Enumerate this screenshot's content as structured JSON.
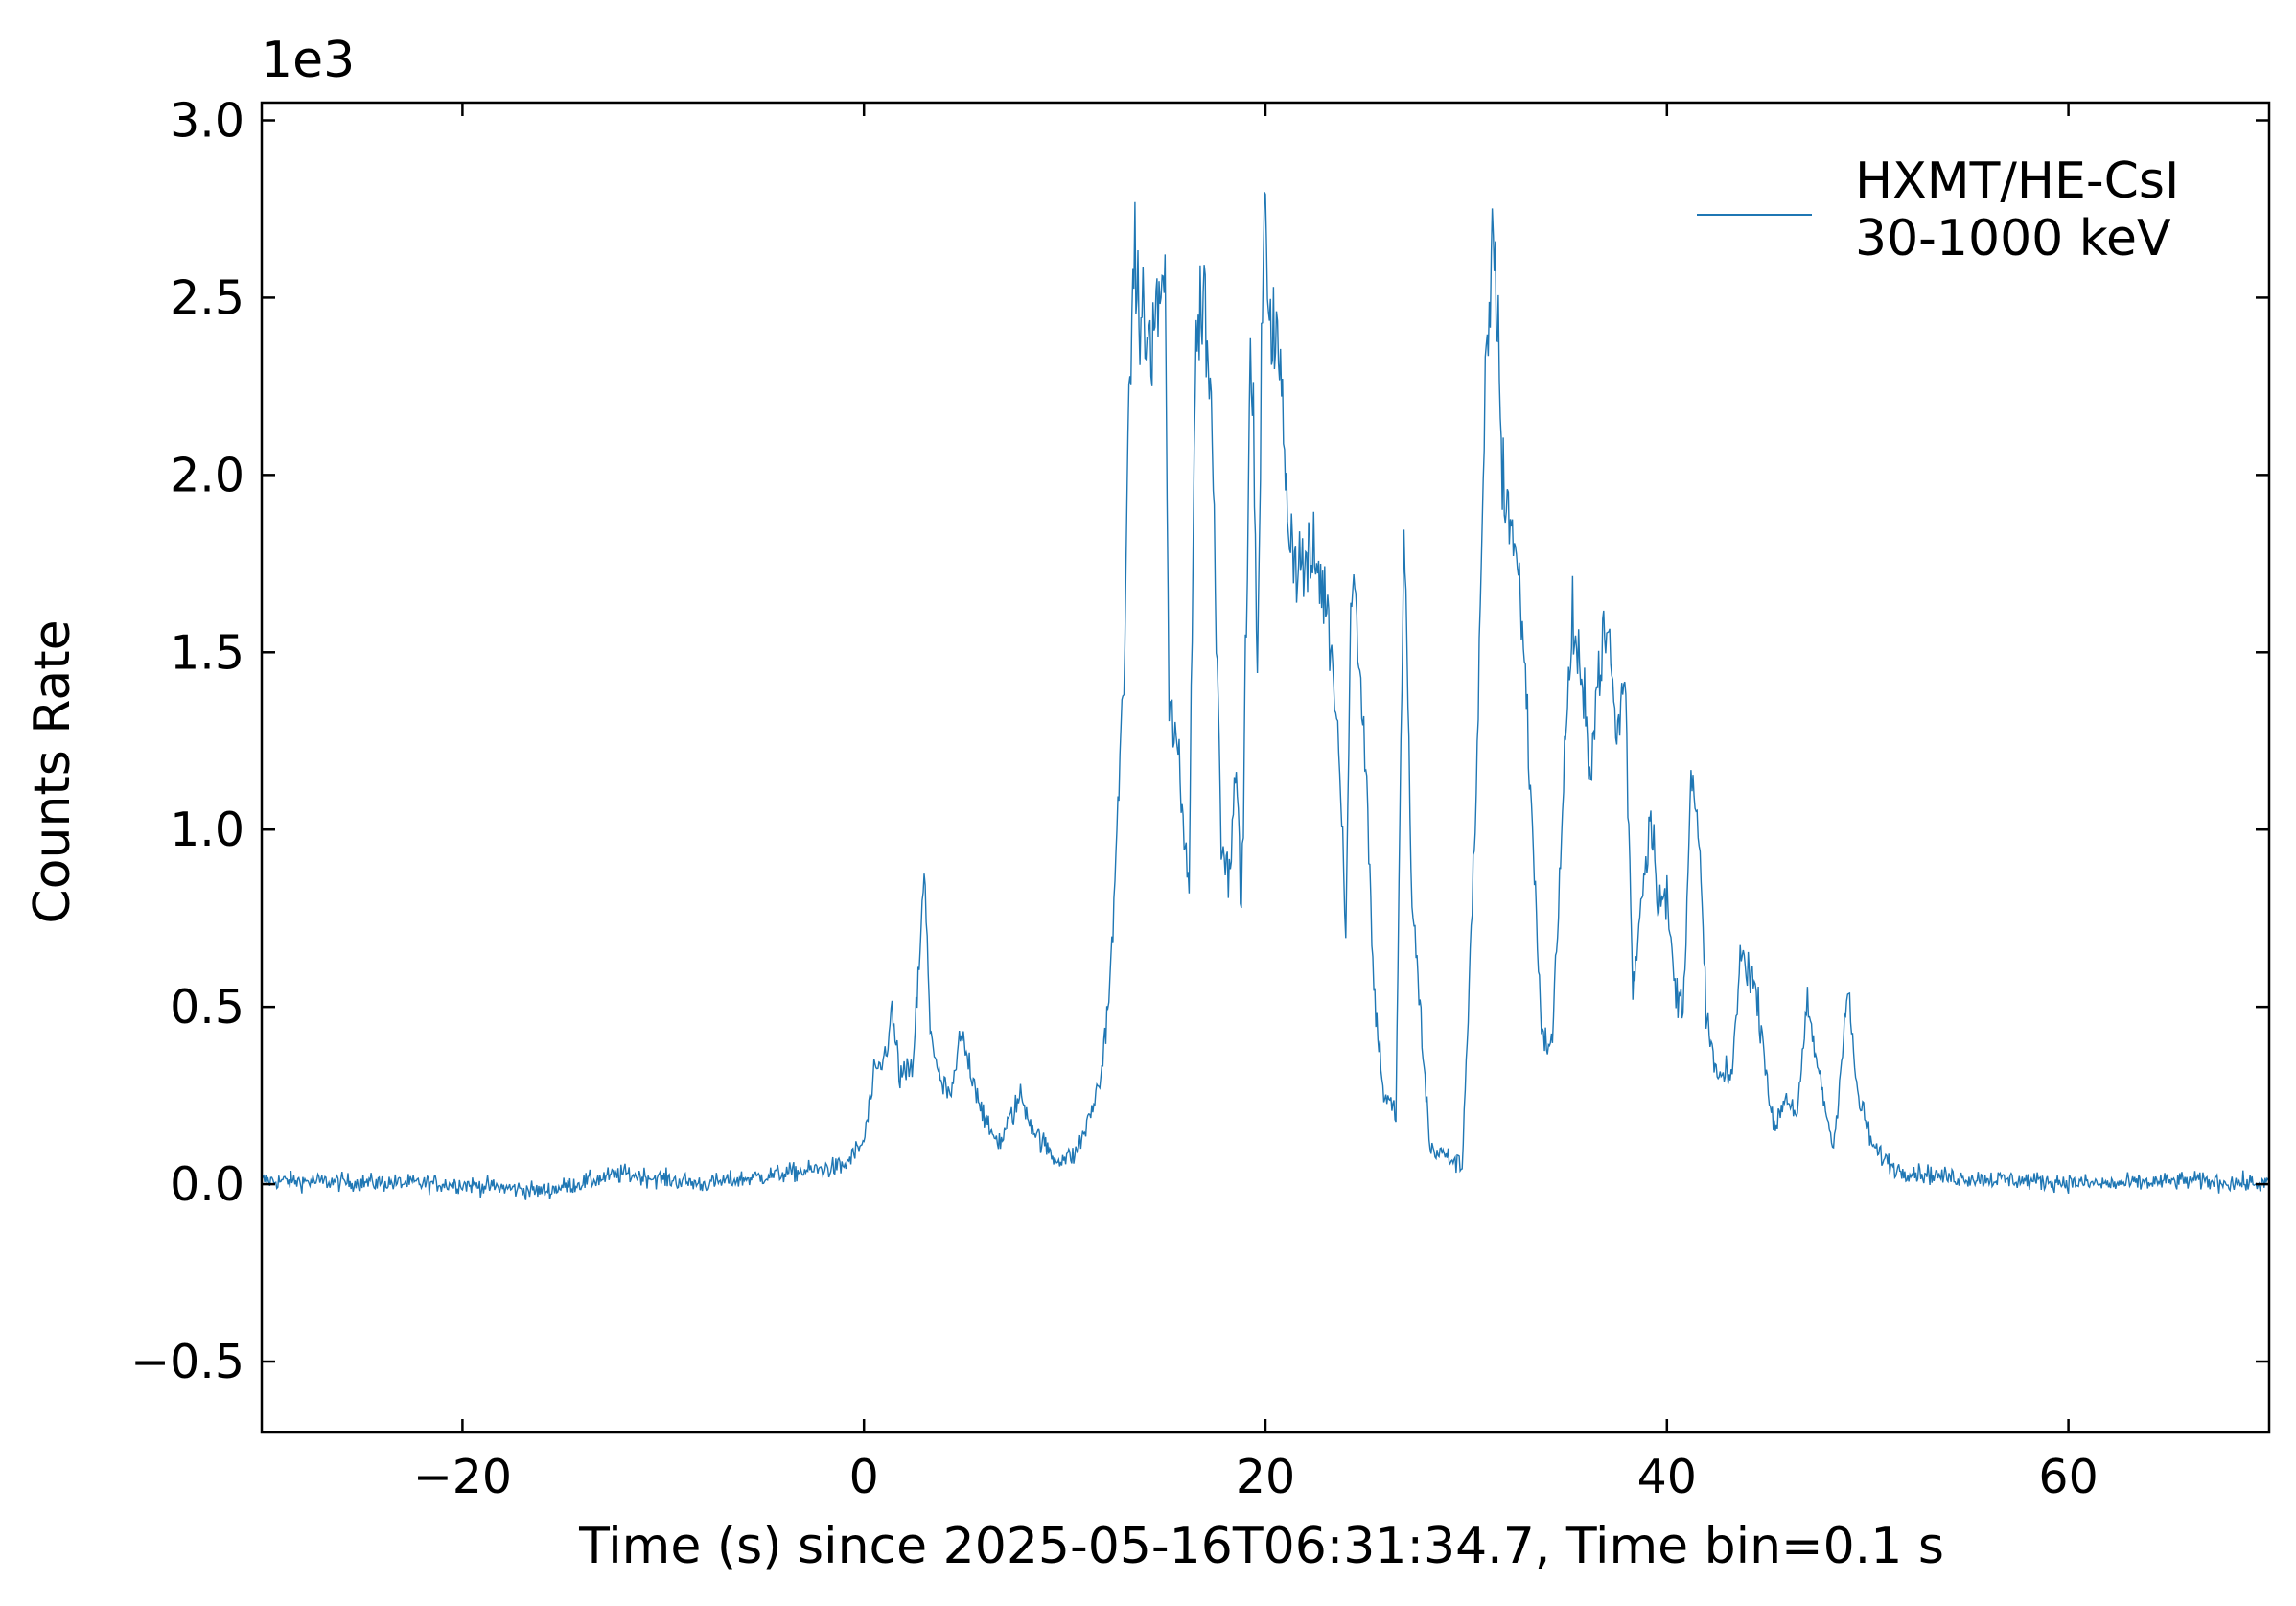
{
  "chart_data": {
    "type": "line",
    "title": "",
    "xlabel": "Time (s) since 2025-05-16T06:31:34.7, Time bin=0.1 s",
    "ylabel": "Counts Rate",
    "y_offset_label": "1e3",
    "xlim": [
      -30,
      70
    ],
    "ylim": [
      -0.7,
      3.05
    ],
    "y_scale_factor": 1000,
    "x_ticks": [
      -20,
      0,
      20,
      40,
      60
    ],
    "x_tick_labels": [
      "−20",
      "0",
      "20",
      "40",
      "60"
    ],
    "y_ticks": [
      -0.5,
      0.0,
      0.5,
      1.0,
      1.5,
      2.0,
      2.5,
      3.0
    ],
    "y_tick_labels": [
      "−0.5",
      "0.0",
      "0.5",
      "1.0",
      "1.5",
      "2.0",
      "2.5",
      "3.0"
    ],
    "grid": false,
    "legend_position": "top-right",
    "series": [
      {
        "name": "HXMT/HE-CsI\n30-1000 keV",
        "color": "#1f77b4",
        "bin_width": 0.1,
        "noise_sigma_baseline": 0.025,
        "envelope": [
          [
            -30,
            0.01
          ],
          [
            -20,
            0.0
          ],
          [
            -16,
            -0.02
          ],
          [
            -12,
            0.03
          ],
          [
            -8,
            0.0
          ],
          [
            -4,
            0.03
          ],
          [
            -1,
            0.05
          ],
          [
            0,
            0.12
          ],
          [
            0.5,
            0.3
          ],
          [
            1.0,
            0.35
          ],
          [
            1.4,
            0.48
          ],
          [
            1.8,
            0.3
          ],
          [
            2.4,
            0.32
          ],
          [
            2.8,
            0.65
          ],
          [
            3.0,
            0.88
          ],
          [
            3.3,
            0.45
          ],
          [
            3.8,
            0.28
          ],
          [
            4.4,
            0.25
          ],
          [
            4.8,
            0.42
          ],
          [
            5.3,
            0.33
          ],
          [
            6.2,
            0.15
          ],
          [
            6.8,
            0.12
          ],
          [
            7.8,
            0.25
          ],
          [
            8.5,
            0.15
          ],
          [
            9.5,
            0.07
          ],
          [
            10.5,
            0.08
          ],
          [
            11.2,
            0.18
          ],
          [
            11.8,
            0.3
          ],
          [
            12.3,
            0.6
          ],
          [
            12.7,
            1.1
          ],
          [
            13.0,
            1.6
          ],
          [
            13.4,
            2.6
          ],
          [
            13.8,
            2.45
          ],
          [
            14.2,
            2.35
          ],
          [
            14.6,
            2.45
          ],
          [
            15.0,
            2.6
          ],
          [
            15.2,
            1.3
          ],
          [
            15.5,
            1.3
          ],
          [
            15.9,
            1.0
          ],
          [
            16.2,
            0.88
          ],
          [
            16.5,
            2.3
          ],
          [
            16.9,
            2.55
          ],
          [
            17.3,
            2.2
          ],
          [
            17.8,
            1.0
          ],
          [
            18.2,
            0.85
          ],
          [
            18.5,
            1.25
          ],
          [
            18.8,
            0.75
          ],
          [
            19.3,
            2.45
          ],
          [
            19.6,
            1.4
          ],
          [
            19.9,
            2.7
          ],
          [
            20.3,
            2.45
          ],
          [
            20.7,
            2.3
          ],
          [
            21.2,
            1.85
          ],
          [
            21.6,
            1.75
          ],
          [
            22.5,
            1.75
          ],
          [
            23.0,
            1.65
          ],
          [
            23.4,
            1.45
          ],
          [
            23.8,
            1.1
          ],
          [
            24.0,
            0.7
          ],
          [
            24.3,
            1.75
          ],
          [
            24.6,
            1.55
          ],
          [
            25.0,
            1.2
          ],
          [
            25.4,
            0.55
          ],
          [
            25.9,
            0.25
          ],
          [
            26.5,
            0.2
          ],
          [
            26.9,
            1.85
          ],
          [
            27.3,
            0.8
          ],
          [
            27.7,
            0.5
          ],
          [
            28.2,
            0.1
          ],
          [
            29.0,
            0.08
          ],
          [
            29.8,
            0.05
          ],
          [
            30.5,
            1.1
          ],
          [
            31.0,
            2.3
          ],
          [
            31.4,
            2.7
          ],
          [
            31.8,
            2.0
          ],
          [
            32.3,
            1.85
          ],
          [
            32.8,
            1.6
          ],
          [
            33.3,
            1.0
          ],
          [
            33.8,
            0.4
          ],
          [
            34.3,
            0.4
          ],
          [
            34.9,
            1.2
          ],
          [
            35.3,
            1.6
          ],
          [
            35.7,
            1.4
          ],
          [
            36.2,
            1.2
          ],
          [
            36.7,
            1.5
          ],
          [
            37.1,
            1.55
          ],
          [
            37.5,
            1.25
          ],
          [
            37.9,
            1.45
          ],
          [
            38.3,
            0.55
          ],
          [
            38.8,
            0.85
          ],
          [
            39.2,
            1.05
          ],
          [
            39.6,
            0.8
          ],
          [
            40.0,
            0.8
          ],
          [
            40.4,
            0.55
          ],
          [
            40.8,
            0.5
          ],
          [
            41.2,
            1.15
          ],
          [
            41.6,
            0.95
          ],
          [
            42.0,
            0.45
          ],
          [
            42.5,
            0.3
          ],
          [
            43.2,
            0.3
          ],
          [
            43.7,
            0.65
          ],
          [
            44.2,
            0.6
          ],
          [
            44.7,
            0.45
          ],
          [
            45.3,
            0.15
          ],
          [
            45.9,
            0.25
          ],
          [
            46.5,
            0.2
          ],
          [
            47.0,
            0.5
          ],
          [
            47.6,
            0.3
          ],
          [
            48.3,
            0.1
          ],
          [
            49.0,
            0.55
          ],
          [
            49.5,
            0.25
          ],
          [
            50.3,
            0.1
          ],
          [
            51.5,
            0.04
          ],
          [
            54,
            0.02
          ],
          [
            58,
            0.01
          ],
          [
            62,
            0.0
          ],
          [
            66,
            0.01
          ],
          [
            70,
            0.0
          ]
        ]
      }
    ]
  }
}
